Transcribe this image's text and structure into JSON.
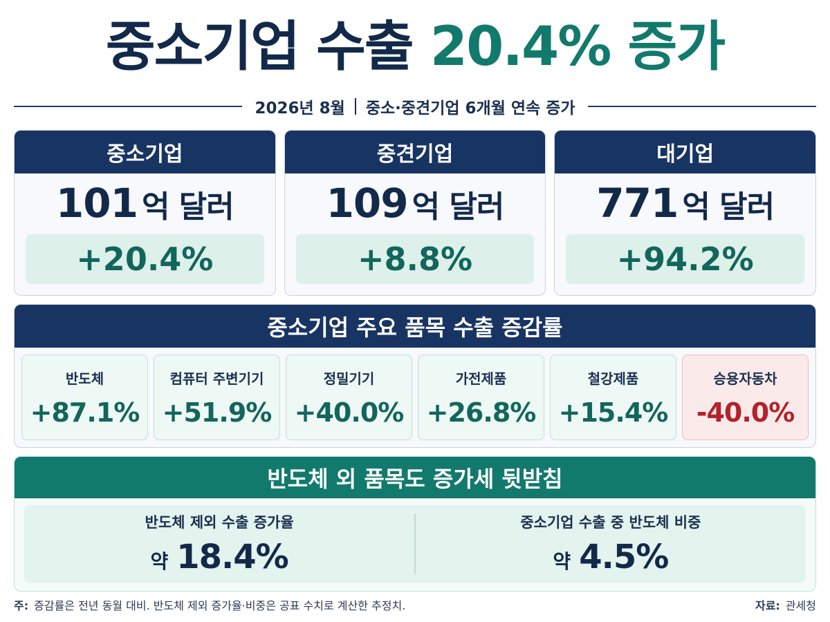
{
  "headline": {
    "part1": "중소기업 수출",
    "part2": "20.4% 증가"
  },
  "subline": {
    "date": "2026년 8월",
    "text": "중소·중견기업 6개월 연속 증가"
  },
  "cards": [
    {
      "title": "중소기업",
      "amount": "101",
      "unit": "억 달러",
      "rate": "+20.4%"
    },
    {
      "title": "중견기업",
      "amount": "109",
      "unit": "억 달러",
      "rate": "+8.8%"
    },
    {
      "title": "대기업",
      "amount": "771",
      "unit": "억 달러",
      "rate": "+94.2%"
    }
  ],
  "items": {
    "title": "중소기업 주요 품목 수출 증감률",
    "list": [
      {
        "name": "반도체",
        "value": "+87.1%"
      },
      {
        "name": "컴퓨터 주변기기",
        "value": "+51.9%"
      },
      {
        "name": "정밀기기",
        "value": "+40.0%"
      },
      {
        "name": "가전제품",
        "value": "+26.8%"
      },
      {
        "name": "철강제품",
        "value": "+15.4%"
      },
      {
        "name": "승용자동차",
        "value": "-40.0%"
      }
    ]
  },
  "support": {
    "title": "반도체 외 품목도 증가세 뒷받침",
    "stats": [
      {
        "label": "반도체 제외 수출 증가율",
        "approx": "약",
        "value": "18.4%"
      },
      {
        "label": "중소기업 수출 중 반도체 비중",
        "approx": "약",
        "value": "4.5%"
      }
    ]
  },
  "footer": {
    "note_label": "주:",
    "note": "증감률은 전년 동월 대비. 반도체 제외 증가율·비중은 공표 수치로 계산한 추정치.",
    "source_label": "자료:",
    "source": "관세청"
  },
  "colors": {
    "navy": "#173463",
    "teal": "#127a6d",
    "positive": "#12665c",
    "negative": "#b3232a"
  }
}
